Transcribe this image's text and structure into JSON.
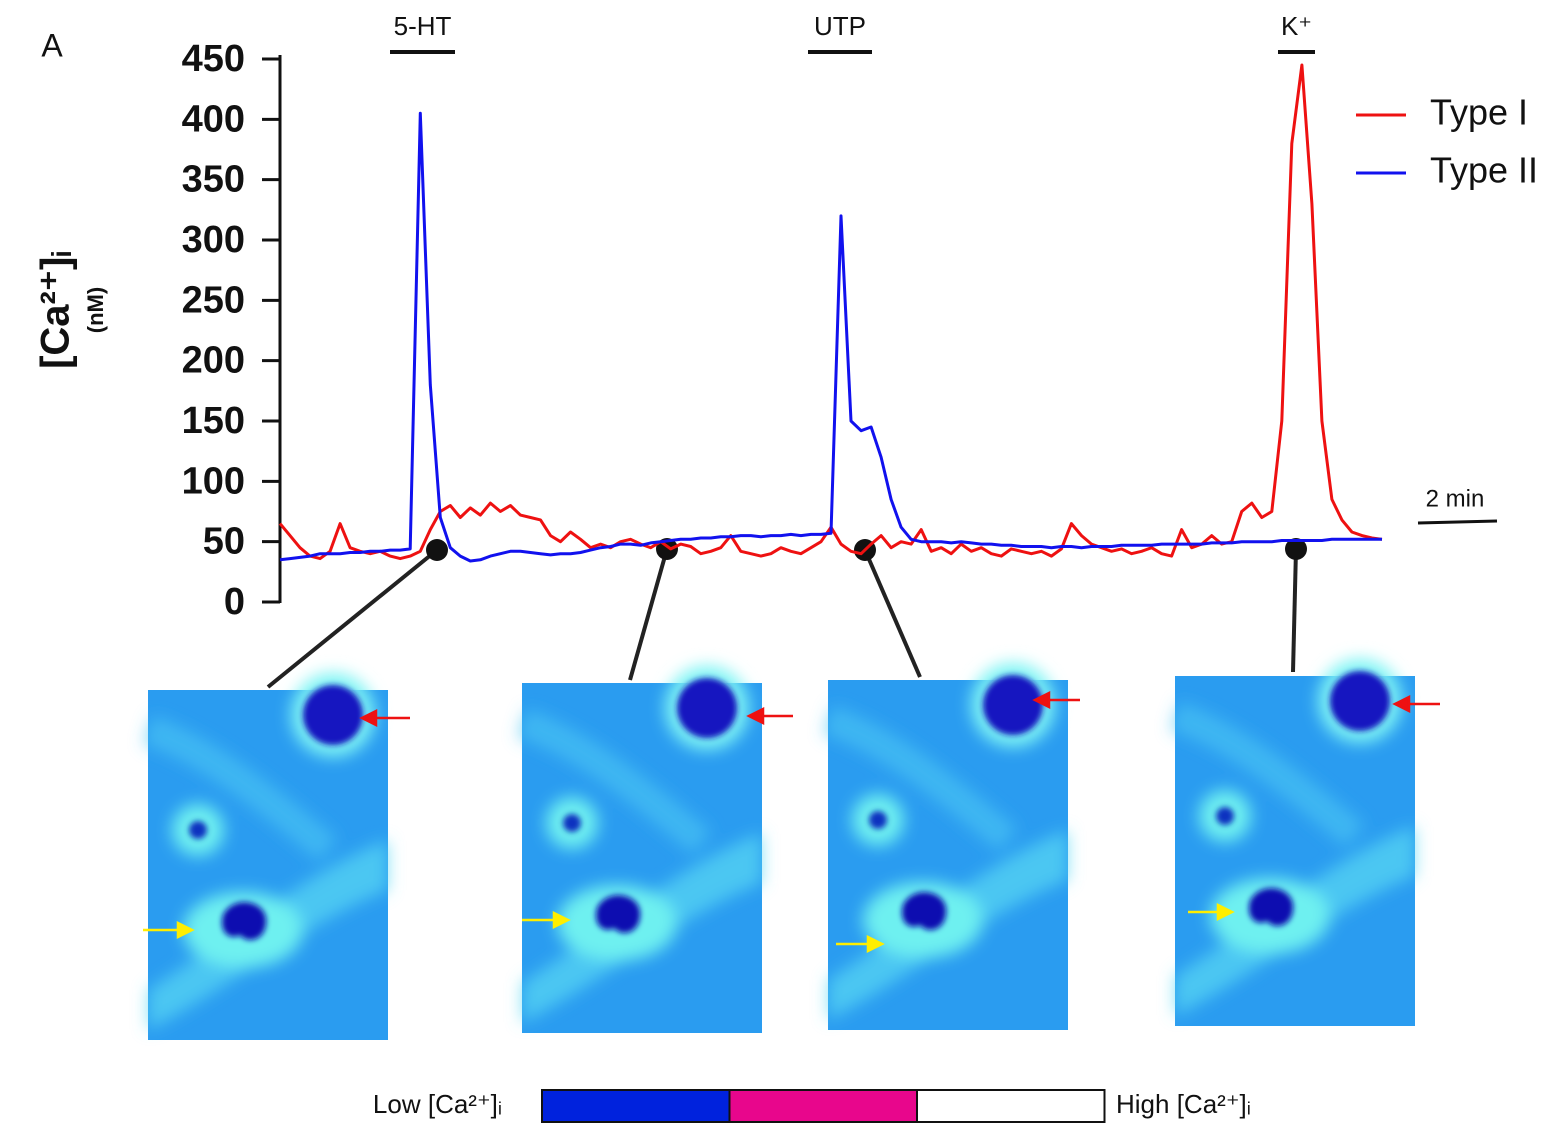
{
  "chart_data": {
    "type": "line",
    "panel_label": "A",
    "y_label": "[Ca²⁺]ᵢ",
    "y_unit": "(nM)",
    "annotations": [
      "5-HT",
      "UTP",
      "K⁺"
    ],
    "scale_bar": "2 min",
    "ylim": [
      0,
      450
    ],
    "yticks": [
      0,
      50,
      100,
      150,
      200,
      250,
      300,
      350,
      400,
      450
    ],
    "legend": "top-right",
    "series": [
      {
        "name": "Type I",
        "color": "#ee1111",
        "values": [
          65,
          55,
          45,
          38,
          36,
          42,
          65,
          45,
          42,
          40,
          42,
          38,
          36,
          38,
          42,
          60,
          75,
          80,
          70,
          78,
          72,
          82,
          75,
          80,
          72,
          70,
          68,
          55,
          50,
          58,
          52,
          45,
          48,
          45,
          50,
          52,
          48,
          45,
          50,
          44,
          48,
          46,
          40,
          42,
          45,
          55,
          42,
          40,
          38,
          40,
          45,
          42,
          40,
          45,
          50,
          62,
          48,
          42,
          40,
          48,
          55,
          45,
          50,
          48,
          60,
          42,
          45,
          40,
          48,
          42,
          45,
          40,
          38,
          44,
          42,
          40,
          42,
          38,
          44,
          65,
          55,
          48,
          45,
          42,
          44,
          40,
          42,
          45,
          40,
          38,
          60,
          45,
          48,
          55,
          48,
          50,
          75,
          82,
          70,
          75,
          150,
          380,
          445,
          330,
          150,
          85,
          68,
          58,
          55,
          53,
          52
        ]
      },
      {
        "name": "Type II",
        "color": "#1111ee",
        "values": [
          35,
          36,
          37,
          38,
          40,
          40,
          40,
          41,
          41,
          42,
          42,
          43,
          43,
          44,
          405,
          180,
          70,
          45,
          38,
          34,
          35,
          38,
          40,
          42,
          42,
          41,
          40,
          39,
          40,
          40,
          41,
          43,
          45,
          46,
          48,
          48,
          47,
          49,
          50,
          51,
          52,
          52,
          53,
          53,
          54,
          54,
          55,
          55,
          54,
          55,
          55,
          56,
          55,
          56,
          56,
          57,
          320,
          150,
          142,
          145,
          120,
          85,
          62,
          52,
          50,
          50,
          50,
          49,
          50,
          49,
          48,
          48,
          47,
          47,
          46,
          46,
          46,
          45,
          46,
          46,
          45,
          46,
          46,
          46,
          47,
          47,
          47,
          47,
          48,
          48,
          48,
          48,
          48,
          49,
          49,
          49,
          50,
          50,
          50,
          50,
          51,
          51,
          51,
          51,
          51,
          52,
          52,
          52,
          52,
          52,
          52
        ]
      }
    ],
    "colorbar": {
      "low_label": "Low [Ca²⁺]ᵢ",
      "high_label": "High [Ca²⁺]ᵢ",
      "colors": [
        "#0022dd",
        "#e8068c",
        "#ffffff"
      ]
    }
  }
}
